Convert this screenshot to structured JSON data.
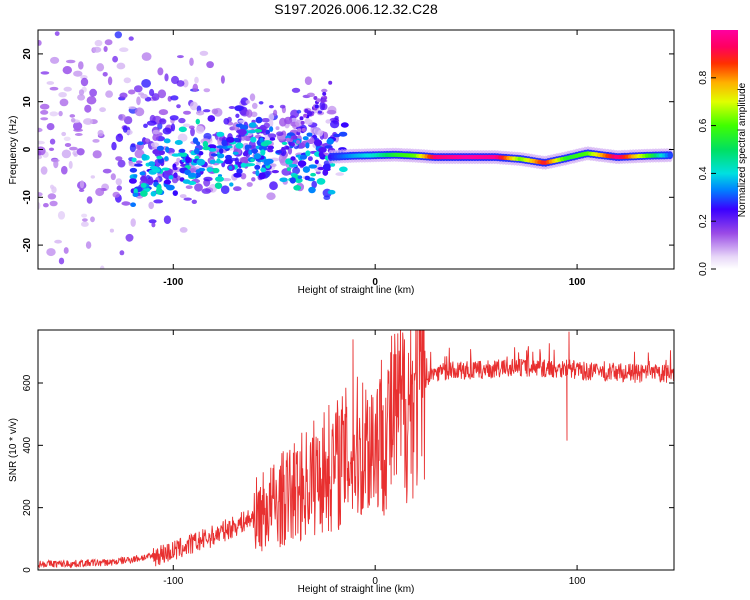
{
  "title": "S197.2026.006.12.32.C28",
  "chart_data": [
    {
      "type": "heatmap",
      "name": "spectrogram",
      "xlabel": "Height of straight line (km)",
      "ylabel": "Frequency (Hz)",
      "xlim": [
        -167,
        148
      ],
      "ylim": [
        -25,
        25
      ],
      "xticks": [
        -100,
        0,
        100
      ],
      "yticks": [
        -20,
        -10,
        0,
        10,
        20
      ],
      "colorbar": {
        "label": "Normalized spectral amplitude",
        "range": [
          0,
          1
        ],
        "ticks": [
          "0.0",
          "0.2",
          "0.4",
          "0.6",
          "0.8"
        ]
      },
      "ridge_points": [
        {
          "h": -20,
          "f": -1.5,
          "amp": 0.28
        },
        {
          "h": -10,
          "f": -1.3,
          "amp": 0.36
        },
        {
          "h": 0,
          "f": -1.2,
          "amp": 0.42
        },
        {
          "h": 10,
          "f": -1.1,
          "amp": 0.55
        },
        {
          "h": 20,
          "f": -1.3,
          "amp": 0.62
        },
        {
          "h": 30,
          "f": -1.6,
          "amp": 0.95
        },
        {
          "h": 45,
          "f": -1.6,
          "amp": 1.0
        },
        {
          "h": 60,
          "f": -1.6,
          "amp": 0.98
        },
        {
          "h": 72,
          "f": -2.0,
          "amp": 0.62
        },
        {
          "h": 84,
          "f": -2.8,
          "amp": 0.9
        },
        {
          "h": 95,
          "f": -1.8,
          "amp": 0.55
        },
        {
          "h": 105,
          "f": -0.8,
          "amp": 0.6
        },
        {
          "h": 120,
          "f": -1.6,
          "amp": 0.97
        },
        {
          "h": 135,
          "f": -1.3,
          "amp": 0.6
        },
        {
          "h": 146,
          "f": -1.2,
          "amp": 0.3
        }
      ]
    },
    {
      "type": "line",
      "name": "snr",
      "xlabel": "Height of straight line (km)",
      "ylabel": "SNR (10 * v/v)",
      "xlim": [
        -167,
        148
      ],
      "ylim": [
        0,
        770
      ],
      "xticks": [
        -100,
        0,
        100
      ],
      "yticks": [
        0,
        200,
        400,
        600
      ],
      "color": "#e83030",
      "series": [
        {
          "name": "SNR",
          "x": [
            -167,
            -150,
            -130,
            -110,
            -100,
            -90,
            -80,
            -70,
            -60,
            -50,
            -40,
            -30,
            -20,
            -10,
            0,
            10,
            20,
            25,
            30,
            40,
            50,
            60,
            70,
            80,
            90,
            95,
            100,
            110,
            120,
            130,
            140,
            148
          ],
          "y": [
            20,
            20,
            25,
            45,
            60,
            85,
            110,
            140,
            170,
            210,
            250,
            300,
            340,
            380,
            420,
            490,
            570,
            610,
            635,
            640,
            640,
            645,
            650,
            648,
            645,
            650,
            640,
            635,
            635,
            630,
            630,
            628
          ]
        }
      ],
      "annotations": [
        {
          "x": -11,
          "y": 740,
          "note": "spike"
        },
        {
          "x": 96,
          "y": 765,
          "note": "spike"
        },
        {
          "x": 95,
          "y": 415,
          "note": "dip"
        }
      ]
    }
  ]
}
